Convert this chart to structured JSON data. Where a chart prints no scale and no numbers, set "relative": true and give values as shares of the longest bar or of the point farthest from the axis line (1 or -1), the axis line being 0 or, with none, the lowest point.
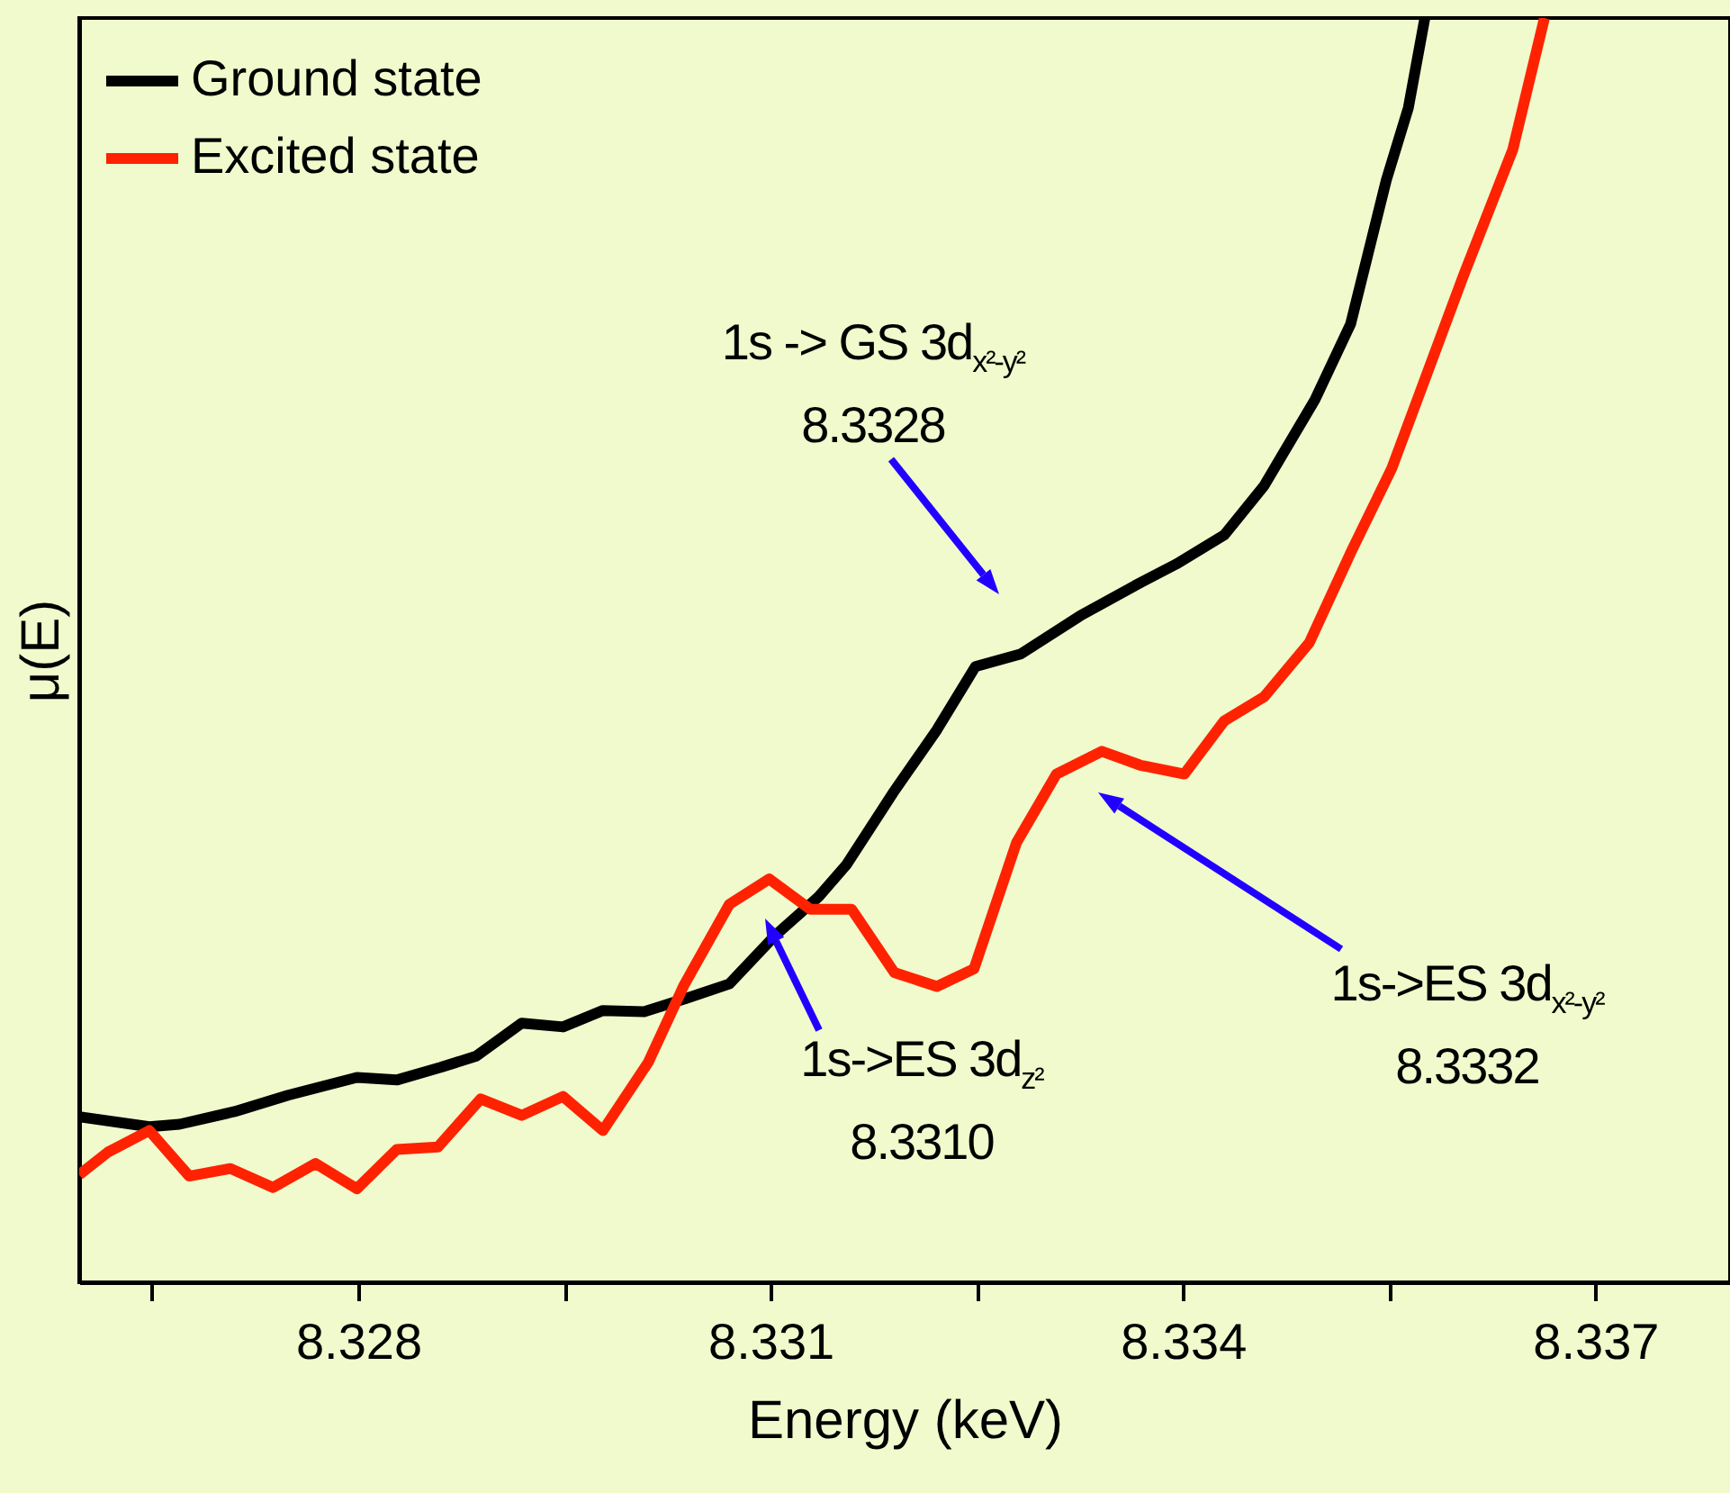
{
  "chart_data": {
    "type": "line",
    "relative": true,
    "xlabel": "Energy (keV)",
    "ylabel": "μ(E)",
    "legend": "top left",
    "xlim": [
      8.32597,
      8.33798
    ],
    "xticks": [
      {
        "value": 8.3265,
        "label": null
      },
      8.328,
      {
        "value": 8.3295,
        "label": null
      },
      8.331,
      {
        "value": 8.3325,
        "label": null
      },
      8.334,
      {
        "value": 8.3355,
        "label": null
      },
      8.337
    ],
    "series": [
      {
        "name": "Ground state",
        "color": "#000000",
        "x": [
          8.32597,
          8.32648,
          8.3267,
          8.3271,
          8.32749,
          8.32799,
          8.32828,
          8.3286,
          8.32886,
          8.32919,
          8.32949,
          8.32978,
          8.33008,
          8.33037,
          8.3307,
          8.33103,
          8.33135,
          8.33155,
          8.33189,
          8.33221,
          8.33249,
          8.33282,
          8.33325,
          8.33365,
          8.33395,
          8.3343,
          8.33459,
          8.33496,
          8.33522,
          8.33548,
          8.33564,
          8.33576
        ],
        "values": [
          0.131,
          0.123,
          0.125,
          0.135,
          0.148,
          0.162,
          0.16,
          0.17,
          0.179,
          0.205,
          0.202,
          0.215,
          0.214,
          0.224,
          0.236,
          0.274,
          0.305,
          0.33,
          0.387,
          0.437,
          0.487,
          0.497,
          0.527,
          0.551,
          0.568,
          0.591,
          0.63,
          0.698,
          0.758,
          0.872,
          0.929,
          1
        ]
      },
      {
        "name": "Excited state",
        "color": "#ff2200",
        "x": [
          8.32597,
          8.32618,
          8.32648,
          8.32677,
          8.32707,
          8.32738,
          8.32769,
          8.32799,
          8.32828,
          8.32858,
          8.32889,
          8.32919,
          8.32949,
          8.32978,
          8.33011,
          8.33037,
          8.3307,
          8.33099,
          8.33129,
          8.33159,
          8.3319,
          8.33221,
          8.33248,
          8.33279,
          8.33308,
          8.33341,
          8.33369,
          8.33401,
          8.3343,
          8.33459,
          8.33492,
          8.33522,
          8.33552,
          8.33604,
          8.3364,
          8.33663
        ],
        "values": [
          0.085,
          0.103,
          0.12,
          0.084,
          0.09,
          0.075,
          0.094,
          0.074,
          0.105,
          0.107,
          0.145,
          0.132,
          0.147,
          0.12,
          0.174,
          0.235,
          0.299,
          0.319,
          0.295,
          0.295,
          0.245,
          0.234,
          0.248,
          0.348,
          0.402,
          0.42,
          0.409,
          0.402,
          0.444,
          0.463,
          0.506,
          0.577,
          0.644,
          0.796,
          0.896,
          1
        ]
      }
    ],
    "annotations": [
      "1s -> GS 3d$_{x²-y²}$\n8.3328",
      "1s->ES 3d$_{z²}$\n8.3310",
      "1s->ES 3d$_{x²-y²}$\n8.3332"
    ]
  }
}
